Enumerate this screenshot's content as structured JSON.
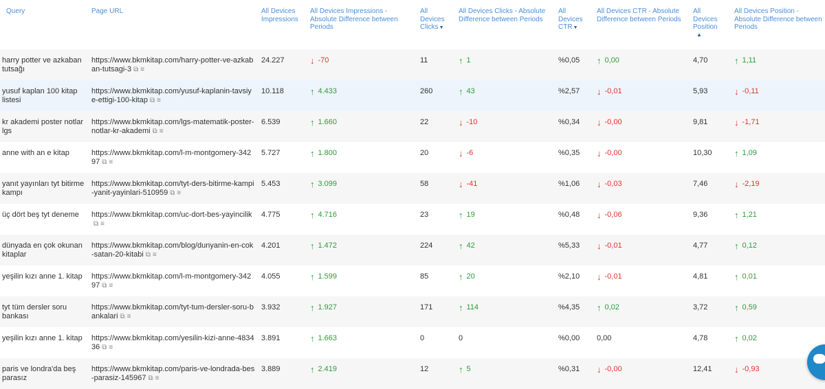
{
  "columns": {
    "query": "Query",
    "page_url": "Page URL",
    "impressions": [
      "All Devices",
      "Impressions"
    ],
    "impressions_diff": [
      "All Devices Impressions -",
      "Absolute Difference between",
      "Periods"
    ],
    "clicks": [
      "All",
      "Devices",
      "Clicks"
    ],
    "clicks_diff": [
      "All Devices Clicks - Absolute",
      "Difference between Periods"
    ],
    "ctr": [
      "All",
      "Devices",
      "CTR"
    ],
    "ctr_diff": [
      "All Devices CTR - Absolute",
      "Difference between Periods"
    ],
    "position": [
      "All",
      "Devices",
      "Position"
    ],
    "position_diff": [
      "All Devices Position -",
      "Absolute Difference between",
      "Periods"
    ]
  },
  "rows": [
    {
      "query": "harry potter ve azkaban tutsağı",
      "url": "https://www.bkmkitap.com/harry-potter-ve-azkaban-tutsagi-3",
      "impressions": "24.227",
      "imp_diff": "-70",
      "imp_dir": "down",
      "clicks": "11",
      "clk_diff": "1",
      "clk_dir": "up",
      "ctr": "%0,05",
      "ctr_diff": "0,00",
      "ctr_dir": "up",
      "position": "4,70",
      "pos_diff": "1,11",
      "pos_dir": "up"
    },
    {
      "query": "yusuf kaplan 100 kitap listesi",
      "url": "https://www.bkmkitap.com/yusuf-kaplanin-tavsiye-ettigi-100-kitap",
      "impressions": "10.118",
      "imp_diff": "4.433",
      "imp_dir": "up",
      "clicks": "260",
      "clk_diff": "43",
      "clk_dir": "up",
      "ctr": "%2,57",
      "ctr_diff": "-0,01",
      "ctr_dir": "down",
      "position": "5,93",
      "pos_diff": "-0,11",
      "pos_dir": "down"
    },
    {
      "query": "kr akademi poster notlar lgs",
      "url": "https://www.bkmkitap.com/lgs-matematik-poster-notlar-kr-akademi",
      "impressions": "6.539",
      "imp_diff": "1.660",
      "imp_dir": "up",
      "clicks": "22",
      "clk_diff": "-10",
      "clk_dir": "down",
      "ctr": "%0,34",
      "ctr_diff": "-0,00",
      "ctr_dir": "down",
      "position": "9,81",
      "pos_diff": "-1,71",
      "pos_dir": "down"
    },
    {
      "query": "anne with an e kitap",
      "url": "https://www.bkmkitap.com/l-m-montgomery-34297",
      "impressions": "5.727",
      "imp_diff": "1.800",
      "imp_dir": "up",
      "clicks": "20",
      "clk_diff": "-6",
      "clk_dir": "down",
      "ctr": "%0,35",
      "ctr_diff": "-0,00",
      "ctr_dir": "down",
      "position": "10,30",
      "pos_diff": "1,09",
      "pos_dir": "up"
    },
    {
      "query": "yanıt yayınları tyt bitirme kampı",
      "url": "https://www.bkmkitap.com/tyt-ders-bitirme-kampi-yanit-yayinlari-510959",
      "impressions": "5.453",
      "imp_diff": "3.099",
      "imp_dir": "up",
      "clicks": "58",
      "clk_diff": "-41",
      "clk_dir": "down",
      "ctr": "%1,06",
      "ctr_diff": "-0,03",
      "ctr_dir": "down",
      "position": "7,46",
      "pos_diff": "-2,19",
      "pos_dir": "down"
    },
    {
      "query": "üç dört beş tyt deneme",
      "url": "https://www.bkmkitap.com/uc-dort-bes-yayincilik",
      "impressions": "4.775",
      "imp_diff": "4.716",
      "imp_dir": "up",
      "clicks": "23",
      "clk_diff": "19",
      "clk_dir": "up",
      "ctr": "%0,48",
      "ctr_diff": "-0,06",
      "ctr_dir": "down",
      "position": "9,36",
      "pos_diff": "1,21",
      "pos_dir": "up"
    },
    {
      "query": "dünyada en çok okunan kitaplar",
      "url": "https://www.bkmkitap.com/blog/dunyanin-en-cok-satan-20-kitabi",
      "impressions": "4.201",
      "imp_diff": "1.472",
      "imp_dir": "up",
      "clicks": "224",
      "clk_diff": "42",
      "clk_dir": "up",
      "ctr": "%5,33",
      "ctr_diff": "-0,01",
      "ctr_dir": "down",
      "position": "4,77",
      "pos_diff": "0,12",
      "pos_dir": "up"
    },
    {
      "query": "yeşilin kızı anne 1. kitap",
      "url": "https://www.bkmkitap.com/l-m-montgomery-34297",
      "impressions": "4.055",
      "imp_diff": "1.599",
      "imp_dir": "up",
      "clicks": "85",
      "clk_diff": "20",
      "clk_dir": "up",
      "ctr": "%2,10",
      "ctr_diff": "-0,01",
      "ctr_dir": "down",
      "position": "4,81",
      "pos_diff": "0,01",
      "pos_dir": "up"
    },
    {
      "query": "tyt tüm dersler soru bankası",
      "url": "https://www.bkmkitap.com/tyt-tum-dersler-soru-bankalari",
      "impressions": "3.932",
      "imp_diff": "1.927",
      "imp_dir": "up",
      "clicks": "171",
      "clk_diff": "114",
      "clk_dir": "up",
      "ctr": "%4,35",
      "ctr_diff": "0,02",
      "ctr_dir": "up",
      "position": "3,72",
      "pos_diff": "0,59",
      "pos_dir": "up"
    },
    {
      "query": "yeşilin kızı anne 1. kitap",
      "url": "https://www.bkmkitap.com/yesilin-kizi-anne-483436",
      "impressions": "3.891",
      "imp_diff": "1.663",
      "imp_dir": "up",
      "clicks": "0",
      "clk_diff": "0",
      "clk_dir": "none",
      "ctr": "%0,00",
      "ctr_diff": "0,00",
      "ctr_dir": "none",
      "position": "4,78",
      "pos_diff": "0,02",
      "pos_dir": "up"
    },
    {
      "query": "paris ve londra'da beş parasız",
      "url": "https://www.bkmkitap.com/paris-ve-londrada-bes-parasiz-145967",
      "impressions": "3.889",
      "imp_diff": "2.419",
      "imp_dir": "up",
      "clicks": "12",
      "clk_diff": "5",
      "clk_dir": "up",
      "ctr": "%0,31",
      "ctr_diff": "-0,00",
      "ctr_dir": "down",
      "position": "12,41",
      "pos_diff": "-0,93",
      "pos_dir": "down"
    }
  ],
  "colors": {
    "up": "#2e9c3a",
    "down": "#e0342b",
    "header_text": "#4a90d9",
    "chat_button": "#1e88c9"
  },
  "icons": {
    "external_link": "external-link-icon",
    "list": "list-icon",
    "chat": "chat-icon",
    "sort_desc": "sort-desc-icon",
    "sort_asc": "sort-asc-icon"
  }
}
